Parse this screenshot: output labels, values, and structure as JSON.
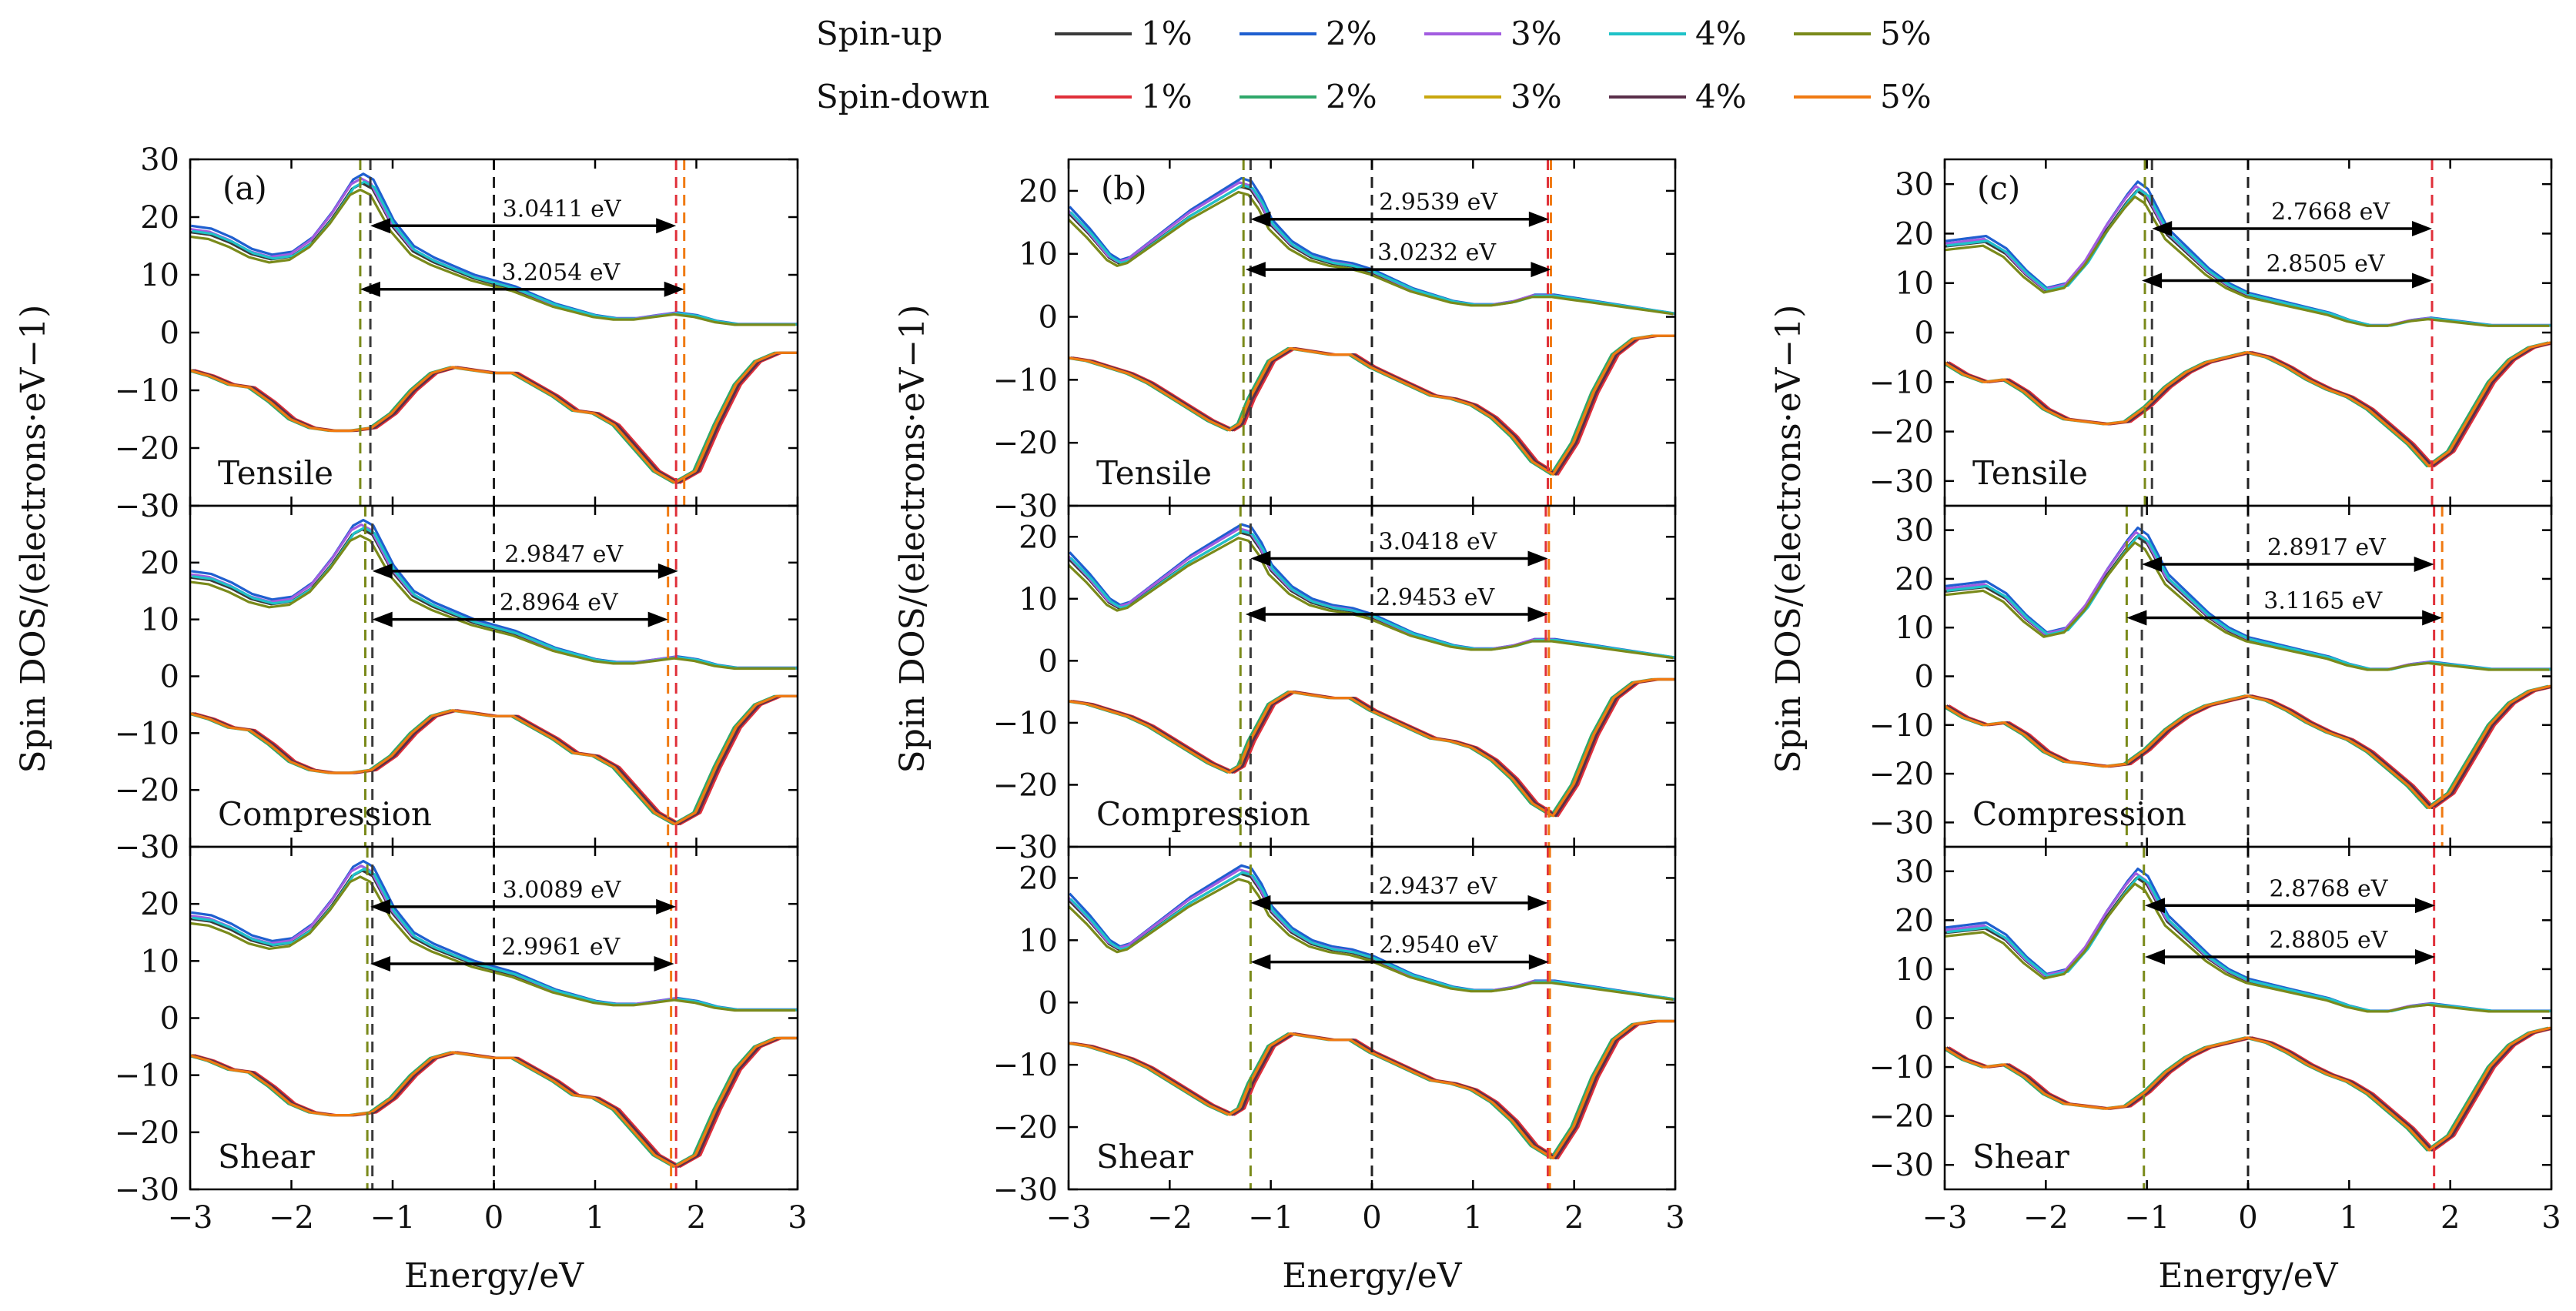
{
  "legend": {
    "rows": [
      {
        "label": "Spin-up",
        "items": [
          {
            "label": "1%",
            "color": "#3a3a3a"
          },
          {
            "label": "2%",
            "color": "#1f5fd0"
          },
          {
            "label": "3%",
            "color": "#a25ce0"
          },
          {
            "label": "4%",
            "color": "#1fc2c8"
          },
          {
            "label": "5%",
            "color": "#7a8a1a"
          }
        ]
      },
      {
        "label": "Spin-down",
        "items": [
          {
            "label": "1%",
            "color": "#e0303a"
          },
          {
            "label": "2%",
            "color": "#2fa86a"
          },
          {
            "label": "3%",
            "color": "#c9a70e"
          },
          {
            "label": "4%",
            "color": "#5a2f4a"
          },
          {
            "label": "5%",
            "color": "#f07a12"
          }
        ]
      }
    ]
  },
  "y_axis_label": "Spin DOS/(electrons·eV−1)",
  "x_axis_label": "Energy/eV",
  "chart_data": [
    {
      "type": "line",
      "panel": "(a)",
      "xlabel": "Energy/eV",
      "ylabel": "Spin DOS/(electrons·eV−1)",
      "xlim": [
        -3,
        3
      ],
      "xticks": [
        -3,
        -2,
        -1,
        0,
        1,
        2,
        3
      ],
      "subplots": [
        {
          "label": "Tensile",
          "ylim": [
            -30,
            30
          ],
          "yticks": [
            -30,
            -20,
            -10,
            0,
            10,
            20,
            30
          ],
          "gaps": [
            {
              "label": "3.0411 eV",
              "from": -1.22,
              "to": 1.8,
              "y": 18.5
            },
            {
              "label": "3.2054 eV",
              "from": -1.32,
              "to": 1.88,
              "y": 7.5
            }
          ],
          "vlines": [
            {
              "x": -1.32,
              "color": "#7a8a1a"
            },
            {
              "x": -1.22,
              "color": "#3a3a3a"
            },
            {
              "x": 0,
              "color": "#222222"
            },
            {
              "x": 1.8,
              "color": "#e0303a"
            },
            {
              "x": 1.88,
              "color": "#f07a12"
            }
          ]
        },
        {
          "label": "Compression",
          "ylim": [
            -30,
            30
          ],
          "yticks": [
            -30,
            -20,
            -10,
            0,
            10,
            20,
            30
          ],
          "gaps": [
            {
              "label": "2.9847 eV",
              "from": -1.2,
              "to": 1.82,
              "y": 18.5
            },
            {
              "label": "2.8964 eV",
              "from": -1.2,
              "to": 1.72,
              "y": 10
            }
          ],
          "vlines": [
            {
              "x": -1.27,
              "color": "#7a8a1a"
            },
            {
              "x": -1.2,
              "color": "#3a3a3a"
            },
            {
              "x": 0,
              "color": "#222222"
            },
            {
              "x": 1.72,
              "color": "#f07a12"
            },
            {
              "x": 1.8,
              "color": "#e0303a"
            }
          ]
        },
        {
          "label": "Shear",
          "ylim": [
            -30,
            30
          ],
          "yticks": [
            -30,
            -20,
            -10,
            0,
            10,
            20,
            30
          ],
          "gaps": [
            {
              "label": "3.0089 eV",
              "from": -1.22,
              "to": 1.8,
              "y": 19.5
            },
            {
              "label": "2.9961 eV",
              "from": -1.22,
              "to": 1.78,
              "y": 9.5
            }
          ],
          "vlines": [
            {
              "x": -1.25,
              "color": "#7a8a1a"
            },
            {
              "x": -1.2,
              "color": "#3a3a3a"
            },
            {
              "x": 0,
              "color": "#222222"
            },
            {
              "x": 1.75,
              "color": "#f07a12"
            },
            {
              "x": 1.8,
              "color": "#e0303a"
            }
          ]
        }
      ],
      "spin_up": {
        "x": [
          -3,
          -2.8,
          -2.6,
          -2.4,
          -2.2,
          -2.0,
          -1.8,
          -1.6,
          -1.4,
          -1.3,
          -1.2,
          -1.1,
          -1.0,
          -0.8,
          -0.6,
          -0.4,
          -0.2,
          0,
          0.2,
          0.4,
          0.6,
          0.8,
          1.0,
          1.2,
          1.4,
          1.6,
          1.8,
          2.0,
          2.2,
          2.4,
          2.6,
          2.8,
          3.0
        ],
        "y": [
          18.5,
          18,
          16.5,
          14.5,
          13.5,
          14,
          16.5,
          21,
          26.5,
          27.5,
          26.5,
          23,
          19.5,
          15,
          13,
          11.5,
          10,
          9,
          8,
          6.5,
          5,
          4,
          3,
          2.5,
          2.5,
          3,
          3.5,
          3,
          2,
          1.5,
          1.5,
          1.5,
          1.5
        ]
      },
      "spin_down": {
        "x": [
          -3,
          -2.8,
          -2.6,
          -2.4,
          -2.2,
          -2.0,
          -1.8,
          -1.6,
          -1.4,
          -1.2,
          -1.0,
          -0.8,
          -0.6,
          -0.4,
          -0.2,
          0,
          0.2,
          0.4,
          0.6,
          0.8,
          1.0,
          1.2,
          1.4,
          1.6,
          1.8,
          2.0,
          2.2,
          2.4,
          2.6,
          2.8,
          3.0
        ],
        "y": [
          -6.5,
          -7.5,
          -9,
          -9.5,
          -12,
          -15,
          -16.5,
          -17,
          -17,
          -16.5,
          -14,
          -10,
          -7,
          -6,
          -6.5,
          -7,
          -7,
          -9,
          -11,
          -13.5,
          -14,
          -16,
          -20,
          -24,
          -26,
          -24,
          -16,
          -9,
          -5,
          -3.5,
          -3.5
        ]
      }
    },
    {
      "type": "line",
      "panel": "(b)",
      "xlabel": "Energy/eV",
      "ylabel": "",
      "xlim": [
        -3,
        3
      ],
      "xticks": [
        -3,
        -2,
        -1,
        0,
        1,
        2,
        3
      ],
      "subplots": [
        {
          "label": "Tensile",
          "ylim": [
            -30,
            25
          ],
          "yticks": [
            -30,
            -20,
            -10,
            0,
            10,
            20
          ],
          "gaps": [
            {
              "label": "2.9539 eV",
              "from": -1.2,
              "to": 1.75,
              "y": 15.5
            },
            {
              "label": "3.0232 eV",
              "from": -1.25,
              "to": 1.77,
              "y": 7.5
            }
          ],
          "vlines": [
            {
              "x": -1.27,
              "color": "#7a8a1a"
            },
            {
              "x": -1.2,
              "color": "#3a3a3a"
            },
            {
              "x": 0,
              "color": "#222222"
            },
            {
              "x": 1.74,
              "color": "#e0303a"
            },
            {
              "x": 1.77,
              "color": "#f07a12"
            }
          ]
        },
        {
          "label": "Compression",
          "ylim": [
            -30,
            25
          ],
          "yticks": [
            -30,
            -20,
            -10,
            0,
            10,
            20
          ],
          "gaps": [
            {
              "label": "3.0418 eV",
              "from": -1.2,
              "to": 1.74,
              "y": 16.5
            },
            {
              "label": "2.9453 eV",
              "from": -1.25,
              "to": 1.74,
              "y": 7.5
            }
          ],
          "vlines": [
            {
              "x": -1.3,
              "color": "#7a8a1a"
            },
            {
              "x": -1.2,
              "color": "#3a3a3a"
            },
            {
              "x": 0,
              "color": "#222222"
            },
            {
              "x": 1.72,
              "color": "#e0303a"
            },
            {
              "x": 1.75,
              "color": "#f07a12"
            }
          ]
        },
        {
          "label": "Shear",
          "ylim": [
            -30,
            25
          ],
          "yticks": [
            -30,
            -20,
            -10,
            0,
            10,
            20
          ],
          "gaps": [
            {
              "label": "2.9437 eV",
              "from": -1.2,
              "to": 1.74,
              "y": 16
            },
            {
              "label": "2.9540 eV",
              "from": -1.2,
              "to": 1.75,
              "y": 6.5
            }
          ],
          "vlines": [
            {
              "x": -1.2,
              "color": "#7a8a1a"
            },
            {
              "x": 0,
              "color": "#222222"
            },
            {
              "x": 1.74,
              "color": "#e0303a"
            },
            {
              "x": 1.76,
              "color": "#f07a12"
            }
          ]
        }
      ],
      "spin_up": {
        "x": [
          -3,
          -2.8,
          -2.6,
          -2.5,
          -2.4,
          -2.2,
          -2.0,
          -1.8,
          -1.6,
          -1.4,
          -1.3,
          -1.2,
          -1.1,
          -1.0,
          -0.8,
          -0.6,
          -0.4,
          -0.2,
          0,
          0.2,
          0.4,
          0.6,
          0.8,
          1.0,
          1.2,
          1.4,
          1.6,
          1.8,
          2.0,
          2.2,
          2.4,
          2.6,
          2.8,
          3.0
        ],
        "y": [
          17.5,
          14,
          10,
          9,
          9.5,
          12,
          14.5,
          17,
          19,
          21,
          22,
          21.5,
          19,
          15.5,
          12,
          10,
          9,
          8.5,
          7.5,
          6,
          4.5,
          3.5,
          2.5,
          2,
          2,
          2.5,
          3.5,
          3.5,
          3,
          2.5,
          2,
          1.5,
          1,
          0.5
        ]
      },
      "spin_down": {
        "x": [
          -3,
          -2.8,
          -2.6,
          -2.4,
          -2.2,
          -2.0,
          -1.8,
          -1.6,
          -1.4,
          -1.3,
          -1.2,
          -1.0,
          -0.8,
          -0.6,
          -0.4,
          -0.2,
          0,
          0.2,
          0.4,
          0.6,
          0.8,
          1.0,
          1.2,
          1.4,
          1.6,
          1.8,
          2.0,
          2.2,
          2.4,
          2.6,
          2.8,
          3.0
        ],
        "y": [
          -6.5,
          -7,
          -8,
          -9,
          -10.5,
          -12.5,
          -14.5,
          -16.5,
          -18,
          -17,
          -13,
          -7,
          -5,
          -5.5,
          -6,
          -6,
          -8,
          -9.5,
          -11,
          -12.5,
          -13,
          -14,
          -16,
          -19,
          -23,
          -25,
          -20,
          -12,
          -6,
          -3.5,
          -3,
          -3
        ]
      }
    },
    {
      "type": "line",
      "panel": "(c)",
      "xlabel": "Energy/eV",
      "ylabel": "Spin DOS/(electrons·eV−1)",
      "xlim": [
        -3,
        3
      ],
      "xticks": [
        -3,
        -2,
        -1,
        0,
        1,
        2,
        3
      ],
      "subplots": [
        {
          "label": "Tensile",
          "ylim": [
            -35,
            35
          ],
          "yticks": [
            -30,
            -20,
            -10,
            0,
            10,
            20,
            30
          ],
          "gaps": [
            {
              "label": "2.7668 eV",
              "from": -0.95,
              "to": 1.82,
              "y": 21
            },
            {
              "label": "2.8505 eV",
              "from": -1.05,
              "to": 1.82,
              "y": 10.5
            }
          ],
          "vlines": [
            {
              "x": -1.02,
              "color": "#7a8a1a"
            },
            {
              "x": -0.95,
              "color": "#3a3a3a"
            },
            {
              "x": 0,
              "color": "#222222"
            },
            {
              "x": 1.82,
              "color": "#e0303a"
            }
          ]
        },
        {
          "label": "Compression",
          "ylim": [
            -35,
            35
          ],
          "yticks": [
            -30,
            -20,
            -10,
            0,
            10,
            20,
            30
          ],
          "gaps": [
            {
              "label": "2.8917 eV",
              "from": -1.05,
              "to": 1.84,
              "y": 23
            },
            {
              "label": "3.1165 eV",
              "from": -1.2,
              "to": 1.92,
              "y": 12
            }
          ],
          "vlines": [
            {
              "x": -1.2,
              "color": "#7a8a1a"
            },
            {
              "x": -1.05,
              "color": "#3a3a3a"
            },
            {
              "x": 0,
              "color": "#222222"
            },
            {
              "x": 1.84,
              "color": "#e0303a"
            },
            {
              "x": 1.92,
              "color": "#f07a12"
            }
          ]
        },
        {
          "label": "Shear",
          "ylim": [
            -35,
            35
          ],
          "yticks": [
            -30,
            -20,
            -10,
            0,
            10,
            20,
            30
          ],
          "gaps": [
            {
              "label": "2.8768 eV",
              "from": -1.02,
              "to": 1.85,
              "y": 23
            },
            {
              "label": "2.8805 eV",
              "from": -1.02,
              "to": 1.85,
              "y": 12.5
            }
          ],
          "vlines": [
            {
              "x": -1.03,
              "color": "#7a8a1a"
            },
            {
              "x": 0,
              "color": "#222222"
            },
            {
              "x": 1.84,
              "color": "#e0303a"
            }
          ]
        }
      ],
      "spin_up": {
        "x": [
          -3,
          -2.8,
          -2.6,
          -2.4,
          -2.2,
          -2.0,
          -1.8,
          -1.6,
          -1.4,
          -1.2,
          -1.1,
          -1.0,
          -0.9,
          -0.8,
          -0.6,
          -0.4,
          -0.2,
          0,
          0.2,
          0.4,
          0.6,
          0.8,
          1.0,
          1.2,
          1.4,
          1.6,
          1.8,
          2.0,
          2.2,
          2.4,
          2.6,
          2.8,
          3.0
        ],
        "y": [
          18.5,
          19,
          19.5,
          17,
          12.5,
          9,
          10,
          15,
          22,
          28,
          30.5,
          29,
          25,
          21,
          17,
          13,
          10,
          8,
          7,
          6,
          5,
          4,
          2.5,
          1.5,
          1.5,
          2.5,
          3,
          2.5,
          2,
          1.5,
          1.5,
          1.5,
          1.5
        ]
      },
      "spin_down": {
        "x": [
          -3,
          -2.8,
          -2.6,
          -2.4,
          -2.2,
          -2.0,
          -1.8,
          -1.6,
          -1.4,
          -1.2,
          -1.0,
          -0.8,
          -0.6,
          -0.4,
          -0.2,
          0,
          0.2,
          0.4,
          0.6,
          0.8,
          1.0,
          1.2,
          1.4,
          1.6,
          1.8,
          2.0,
          2.2,
          2.4,
          2.6,
          2.8,
          3.0
        ],
        "y": [
          -6,
          -8.5,
          -10,
          -9.5,
          -12,
          -15.5,
          -17.5,
          -18,
          -18.5,
          -18,
          -15,
          -11,
          -8,
          -6,
          -5,
          -4,
          -5,
          -7,
          -9.5,
          -11.5,
          -13,
          -15.5,
          -19,
          -22.5,
          -27,
          -24,
          -17,
          -10,
          -5.5,
          -3,
          -2
        ]
      }
    }
  ]
}
